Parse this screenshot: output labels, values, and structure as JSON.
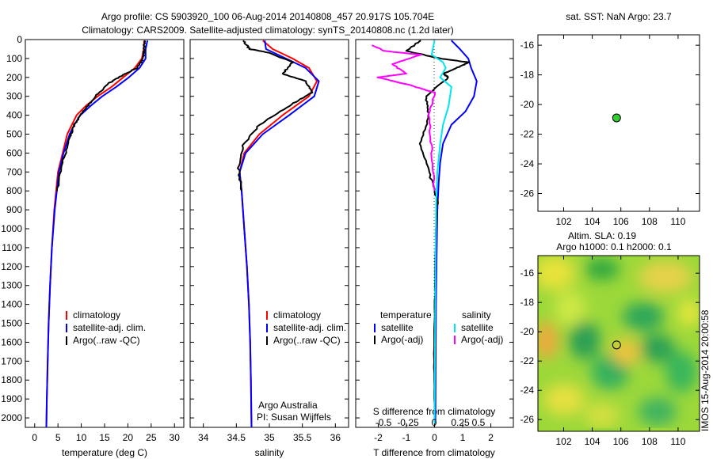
{
  "header": {
    "title_line1": "Argo profile: CS 5903920_100 06-Aug-2014 20140808_457 20.917S 105.704E",
    "title_line2": "Climatology: CARS2009. Satellite-adjusted climatology: synTS_20140808.nc (1.2d later)"
  },
  "side_label": "IMOS 15-Aug-2014 20:00:58",
  "colors": {
    "climatology": "#ff0000",
    "satellite": "#0000ff",
    "argo": "#000000",
    "sat_salinity": "#00e5ee",
    "argo_salinity": "#ff00ff",
    "marker": "#33cc33"
  },
  "chart_data": [
    {
      "type": "line",
      "panel": "temperature",
      "xlabel": "temperature (deg C)",
      "xlim": [
        -2,
        32
      ],
      "ylim": [
        2050,
        0
      ],
      "xticks": [
        0,
        5,
        10,
        15,
        20,
        25,
        30
      ],
      "yticks": [
        0,
        100,
        200,
        300,
        400,
        500,
        600,
        700,
        800,
        900,
        1000,
        1100,
        1200,
        1300,
        1400,
        1500,
        1600,
        1700,
        1800,
        1900,
        2000
      ],
      "legend": [
        "climatology",
        "satellite-adj. clim.",
        "Argo(..raw -QC)"
      ],
      "series": [
        {
          "name": "climatology",
          "color": "#ff0000",
          "x": [
            23.5,
            23.4,
            23.0,
            21.5,
            19.0,
            16.5,
            13.5,
            11.0,
            9.0,
            8.0,
            7.0,
            6.0,
            5.0,
            4.2,
            3.7,
            3.3,
            3.0,
            2.8,
            2.6,
            2.5
          ],
          "y": [
            5,
            50,
            100,
            150,
            200,
            250,
            300,
            350,
            400,
            450,
            500,
            600,
            700,
            900,
            1100,
            1300,
            1500,
            1700,
            1900,
            2050
          ]
        },
        {
          "name": "satellite-adj. clim.",
          "color": "#0000ff",
          "x": [
            24.2,
            23.8,
            23.8,
            22.5,
            20.2,
            17.5,
            14.5,
            12.0,
            9.8,
            8.5,
            7.5,
            6.2,
            5.2,
            4.3,
            3.7,
            3.3,
            3.0,
            2.8,
            2.6,
            2.5
          ],
          "y": [
            5,
            50,
            100,
            150,
            200,
            250,
            300,
            350,
            400,
            450,
            500,
            600,
            700,
            900,
            1100,
            1300,
            1500,
            1700,
            1900,
            2050
          ]
        },
        {
          "name": "Argo(..raw -QC)",
          "color": "#000000",
          "x": [
            23.6,
            23.5,
            23.3,
            22.0,
            19.5,
            18.0,
            16.0,
            13.0,
            10.5,
            8.5,
            7.5,
            6.0,
            4.8
          ],
          "y": [
            5,
            50,
            100,
            150,
            180,
            200,
            230,
            300,
            380,
            450,
            520,
            650,
            800
          ]
        }
      ]
    },
    {
      "type": "line",
      "panel": "salinity",
      "xlabel": "salinity",
      "xlim": [
        33.8,
        36.2
      ],
      "ylim": [
        2050,
        0
      ],
      "xticks": [
        34,
        34.5,
        35,
        35.5,
        36
      ],
      "xticklabels": [
        "34",
        "34.5",
        "35",
        "35.5",
        "36"
      ],
      "legend": [
        "climatology",
        "satellite-adj. clim.",
        "Argo(..raw -QC)"
      ],
      "annotation": [
        "Argo Australia",
        "PI: Susan Wijffels"
      ],
      "series": [
        {
          "name": "climatology",
          "color": "#ff0000",
          "x": [
            34.9,
            35.05,
            35.35,
            35.6,
            35.72,
            35.6,
            35.2,
            34.85,
            34.62,
            34.55,
            34.58,
            34.62,
            34.66,
            34.69,
            34.71,
            34.72,
            34.73
          ],
          "y": [
            5,
            50,
            100,
            150,
            220,
            300,
            400,
            500,
            600,
            700,
            800,
            1000,
            1200,
            1400,
            1600,
            1800,
            2050
          ]
        },
        {
          "name": "satellite-adj. clim.",
          "color": "#0000ff",
          "x": [
            34.93,
            34.95,
            35.25,
            35.55,
            35.75,
            35.68,
            35.3,
            34.9,
            34.64,
            34.55,
            34.58,
            34.62,
            34.66,
            34.69,
            34.71,
            34.72,
            34.73
          ],
          "y": [
            5,
            50,
            100,
            150,
            220,
            300,
            400,
            500,
            600,
            700,
            800,
            1000,
            1200,
            1400,
            1600,
            1800,
            2050
          ]
        },
        {
          "name": "Argo(..raw -QC)",
          "color": "#000000",
          "x": [
            34.6,
            34.7,
            35.0,
            35.35,
            35.2,
            35.55,
            35.65,
            35.3,
            34.85,
            34.6,
            34.53,
            34.58
          ],
          "y": [
            5,
            50,
            70,
            120,
            180,
            220,
            280,
            350,
            450,
            560,
            680,
            800
          ]
        }
      ]
    },
    {
      "type": "line",
      "panel": "difference",
      "xlabel": "T difference from climatology",
      "xlabel_top": "S difference from climatology",
      "xlim": [
        -2.8,
        2.8
      ],
      "ylim": [
        2050,
        0
      ],
      "xticks": [
        -2,
        -1,
        0,
        1,
        2
      ],
      "xticklabels": [
        "-2",
        "-1",
        "0",
        "1",
        "2"
      ],
      "sticks_labels": [
        "-0.5",
        "-0.25",
        "0",
        "0.25",
        "0.5"
      ],
      "legend_title_t": "temperature",
      "legend_title_s": "salinity",
      "legend": [
        "satellite",
        "Argo(-adj)",
        "satellite",
        "Argo(-adj)"
      ],
      "series": [
        {
          "name": "satellite",
          "color": "#0000ff",
          "x": [
            0.6,
            0.9,
            1.2,
            1.3,
            1.5,
            1.4,
            1.1,
            0.6,
            0.3,
            0.2,
            0.15,
            0.1,
            0.08,
            0.05,
            0.04,
            0.03
          ],
          "y": [
            5,
            50,
            100,
            150,
            220,
            300,
            380,
            450,
            550,
            650,
            750,
            900,
            1100,
            1400,
            1700,
            2030
          ]
        },
        {
          "name": "Argo(-adj)",
          "color": "#000000",
          "x": [
            -0.5,
            -1.0,
            0.2,
            1.2,
            0.8,
            0.3,
            0.5,
            -0.3,
            -0.2,
            -0.5,
            -0.2,
            0.1,
            0.05,
            0.02,
            -0.02,
            0.0
          ],
          "y": [
            5,
            60,
            100,
            120,
            150,
            180,
            200,
            300,
            400,
            550,
            700,
            850,
            1000,
            1300,
            1700,
            2030
          ]
        },
        {
          "name": "satellite",
          "color": "#00e5ee",
          "x": [
            0.0,
            -0.1,
            0.3,
            0.4,
            0.2,
            0.6,
            0.5,
            0.3,
            0.2,
            0.1,
            0.06,
            0.04,
            0.02,
            0.0
          ],
          "y": [
            5,
            80,
            120,
            150,
            200,
            250,
            350,
            450,
            550,
            700,
            850,
            1100,
            1500,
            2030
          ]
        },
        {
          "name": "Argo(-adj)",
          "color": "#ff00ff",
          "x": [
            -2.2,
            -1.8,
            -0.5,
            -1.5,
            -1.0,
            -2.0,
            -0.9,
            0.0,
            -0.2,
            -0.1,
            0.0
          ],
          "y": [
            30,
            60,
            80,
            130,
            180,
            200,
            240,
            280,
            400,
            600,
            800
          ]
        }
      ]
    },
    {
      "type": "scatter",
      "panel": "sst_map",
      "title": "sat. SST: NaN Argo: 23.7",
      "xlim": [
        100.2,
        111.5
      ],
      "ylim": [
        -27.2,
        -15.3
      ],
      "xticks": [
        102,
        104,
        106,
        108,
        110
      ],
      "yticks": [
        -16,
        -18,
        -20,
        -22,
        -24,
        -26
      ],
      "points": [
        {
          "x": 105.7,
          "y": -20.9
        }
      ]
    },
    {
      "type": "heatmap",
      "panel": "sla_map",
      "title_line1": "Altim. SLA: 0.19",
      "title_line2": "Argo h1000: 0.1 h2000: 0.1",
      "xlim": [
        100.2,
        111.5
      ],
      "ylim": [
        -26.8,
        -14.8
      ],
      "xticks": [
        102,
        104,
        106,
        108,
        110
      ],
      "yticks": [
        -16,
        -18,
        -20,
        -22,
        -24,
        -26
      ],
      "points": [
        {
          "x": 105.7,
          "y": -20.9
        }
      ]
    }
  ]
}
